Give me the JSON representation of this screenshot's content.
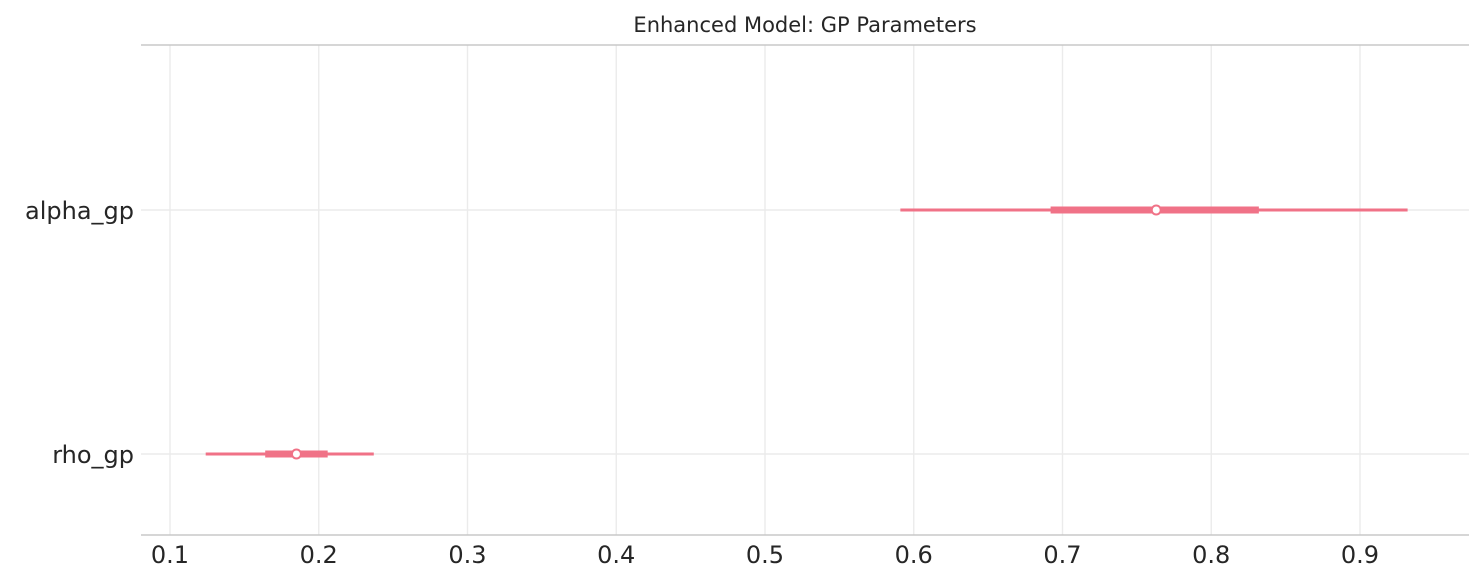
{
  "chart_data": {
    "type": "forest",
    "title": "Enhanced Model: GP Parameters",
    "xlabel": "",
    "ylabel": "",
    "xlim": [
      0.085,
      0.97
    ],
    "xticks": [
      0.1,
      0.2,
      0.3,
      0.4,
      0.5,
      0.6,
      0.7,
      0.8,
      0.9
    ],
    "xtick_labels": [
      "0.1",
      "0.2",
      "0.3",
      "0.4",
      "0.5",
      "0.6",
      "0.7",
      "0.8",
      "0.9"
    ],
    "grid": true,
    "color": "#f07287",
    "parameters": [
      {
        "label": "alpha_gp",
        "median": 0.763,
        "inner": [
          0.692,
          0.832
        ],
        "outer": [
          0.591,
          0.932
        ]
      },
      {
        "label": "rho_gp",
        "median": 0.185,
        "inner": [
          0.164,
          0.206
        ],
        "outer": [
          0.124,
          0.237
        ]
      }
    ]
  }
}
